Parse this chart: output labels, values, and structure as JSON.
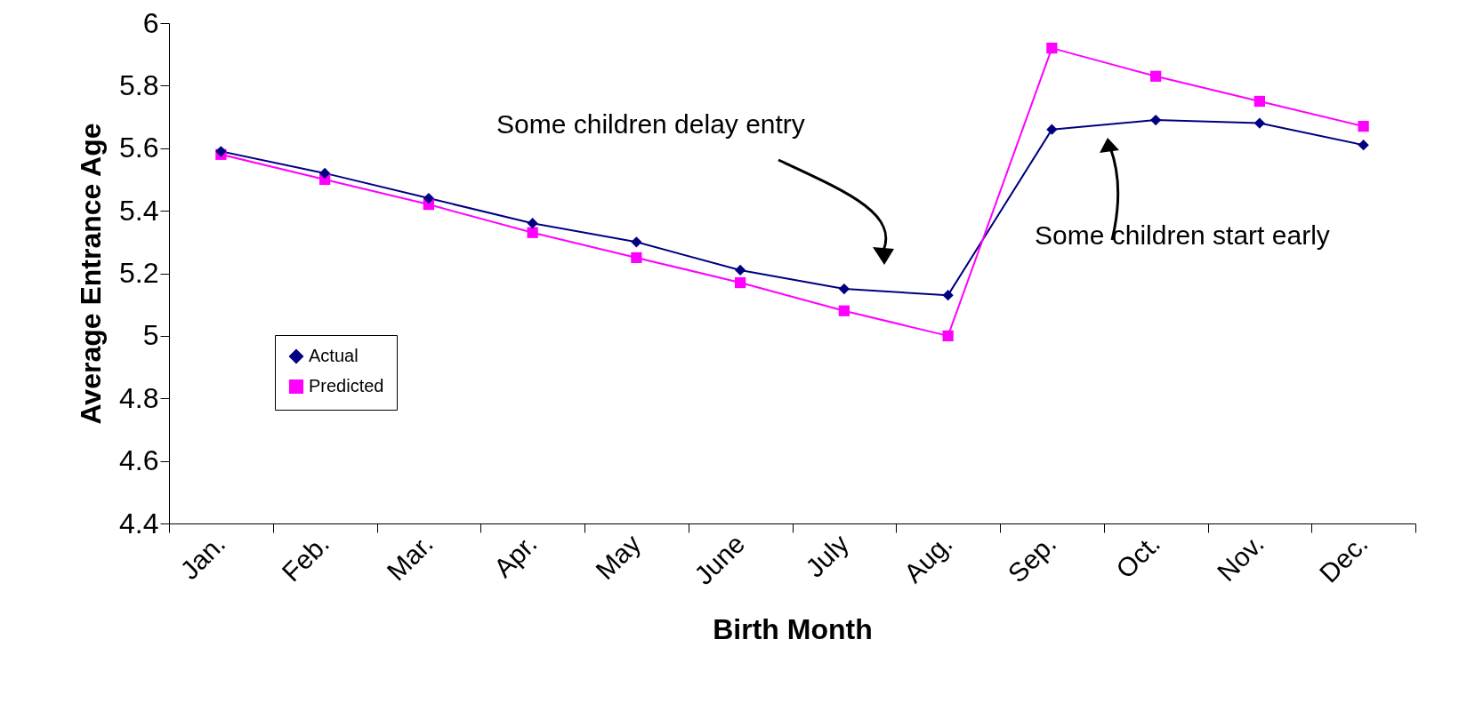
{
  "chart_data": {
    "type": "line",
    "xlabel": "Birth Month",
    "ylabel": "Average Entrance Age",
    "categories": [
      "Jan.",
      "Feb.",
      "Mar.",
      "Apr.",
      "May",
      "June",
      "July",
      "Aug.",
      "Sep.",
      "Oct.",
      "Nov.",
      "Dec."
    ],
    "series": [
      {
        "name": "Actual",
        "color": "#000080",
        "marker": "diamond",
        "values": [
          5.59,
          5.52,
          5.44,
          5.36,
          5.3,
          5.21,
          5.15,
          5.13,
          5.66,
          5.69,
          5.68,
          5.61
        ]
      },
      {
        "name": "Predicted",
        "color": "#ff00ff",
        "marker": "square",
        "values": [
          5.58,
          5.5,
          5.42,
          5.33,
          5.25,
          5.17,
          5.08,
          5.0,
          5.92,
          5.83,
          5.75,
          5.67
        ]
      }
    ],
    "ylim": [
      4.4,
      6
    ],
    "yticks": [
      4.4,
      4.6,
      4.8,
      5,
      5.2,
      5.4,
      5.6,
      5.8,
      6
    ],
    "grid": false,
    "legend": "left",
    "line_style": "solid",
    "annotations": [
      "Some children delay entry",
      "Some children start early"
    ]
  }
}
